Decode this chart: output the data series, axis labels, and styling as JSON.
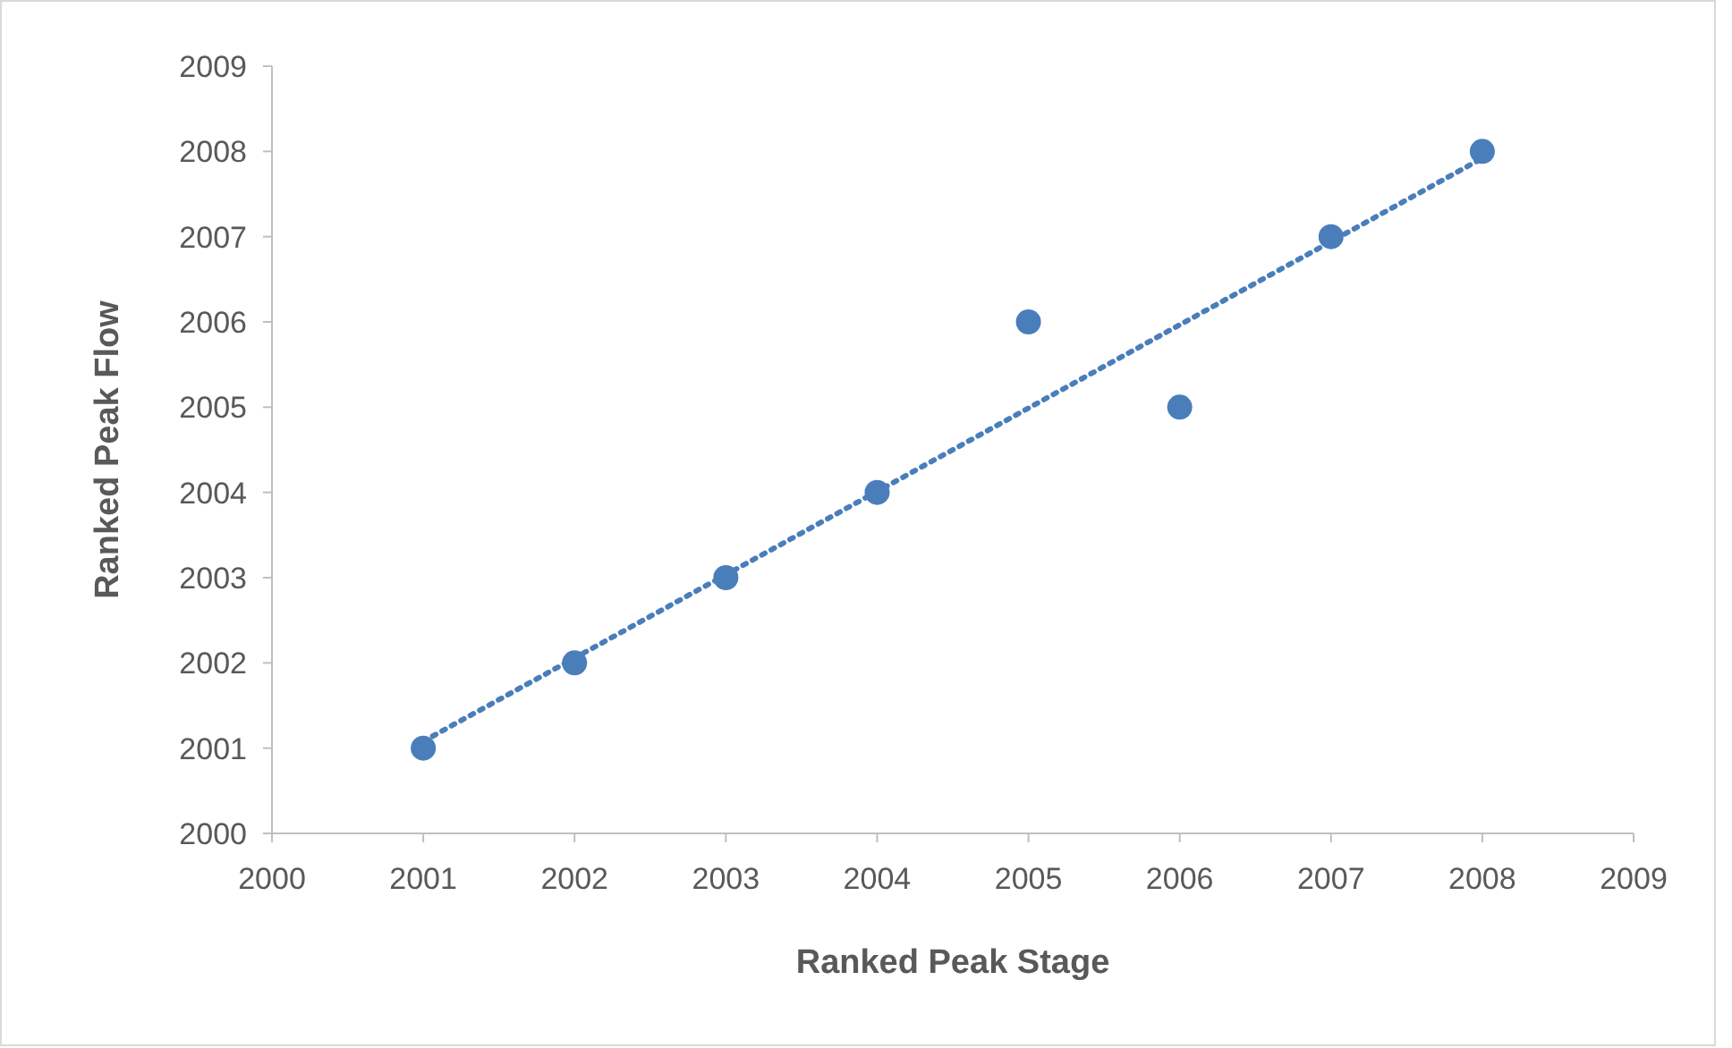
{
  "chart_data": {
    "type": "scatter",
    "xlabel": "Ranked Peak Stage",
    "ylabel": "Ranked Peak Flow",
    "xlim": [
      2000,
      2009
    ],
    "xticks": [
      2000,
      2001,
      2002,
      2003,
      2004,
      2005,
      2006,
      2007,
      2008,
      2009
    ],
    "ylim": [
      2000,
      2009
    ],
    "yticks": [
      2000,
      2001,
      2002,
      2003,
      2004,
      2005,
      2006,
      2007,
      2008,
      2009
    ],
    "grid": false,
    "series": [
      {
        "color": "#4a7ebb",
        "marker": "circle",
        "x": [
          2001,
          2002,
          2003,
          2004,
          2005,
          2006,
          2007,
          2008
        ],
        "values": [
          2001,
          2002,
          2003,
          2004,
          2006,
          2005,
          2007,
          2008
        ]
      },
      {
        "type": "line",
        "color": "#4a7ebb",
        "marker": "none",
        "line_style": "dotted",
        "x": [
          2001,
          2008
        ],
        "values": [
          2001.08,
          2007.92
        ]
      }
    ]
  }
}
